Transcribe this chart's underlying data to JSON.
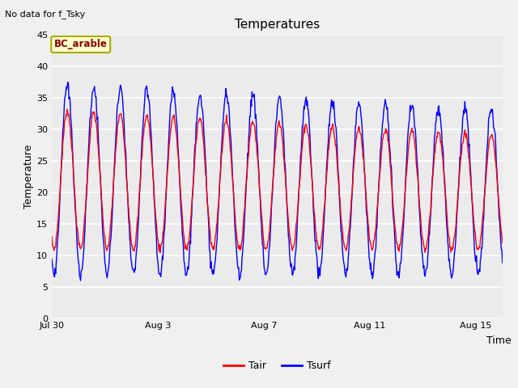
{
  "title": "Temperatures",
  "xlabel": "Time",
  "ylabel": "Temperature",
  "top_left_text": "No data for f_Tsky",
  "box_label": "BC_arable",
  "ylim": [
    0,
    45
  ],
  "yticks": [
    0,
    5,
    10,
    15,
    20,
    25,
    30,
    35,
    40,
    45
  ],
  "n_days": 17,
  "air_color": "#ff0000",
  "surf_color": "#0000ff",
  "bg_color": "#e8e8e8",
  "plot_bg": "#ebebeb",
  "legend_labels": [
    "Tair",
    "Tsurf"
  ],
  "xtick_labels": [
    "Jul 30",
    "Aug 3",
    "Aug 7",
    "Aug 11",
    "Aug 15"
  ],
  "xtick_positions": [
    0,
    4,
    8,
    12,
    16
  ],
  "figsize": [
    6.4,
    4.8
  ],
  "dpi": 100
}
